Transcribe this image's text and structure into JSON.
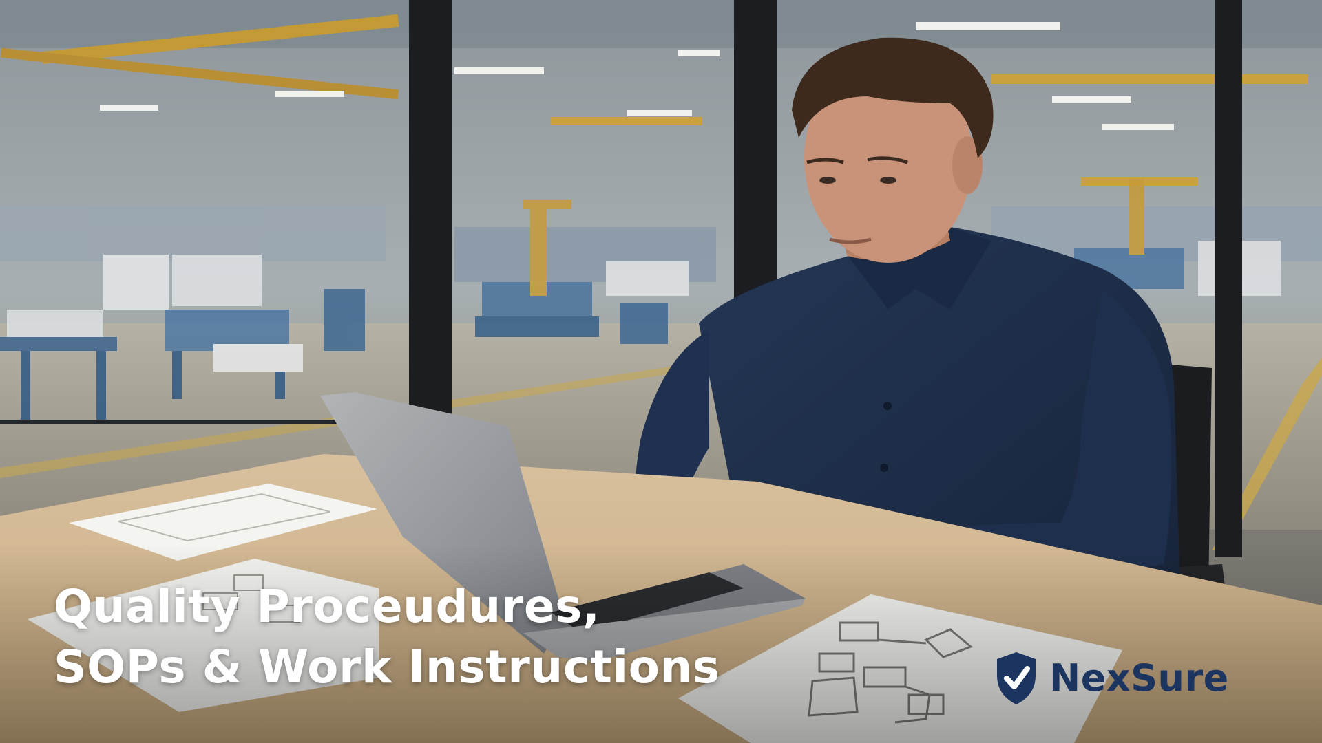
{
  "headline": {
    "line1": "Quality Proceudures,",
    "line2": "SOPs & Work Instructions"
  },
  "brand": {
    "name": "NexSure",
    "icon": "shield-check-icon",
    "color": "#1c3560"
  },
  "colors": {
    "headline_text": "#ffffff",
    "shirt": "#1d2d46",
    "desk": "#d6bc95",
    "factory_background": "#aeb7bc"
  }
}
